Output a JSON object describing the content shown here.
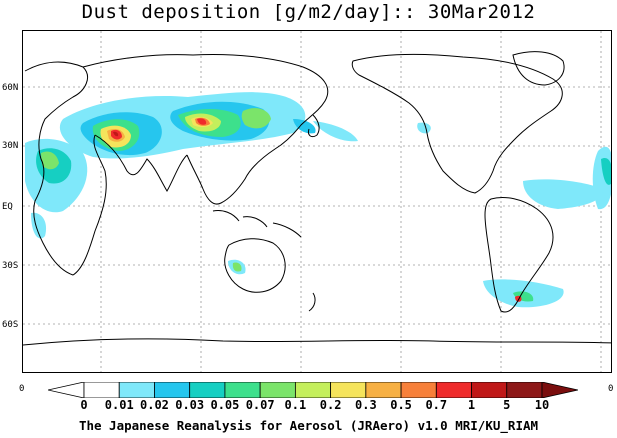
{
  "title": "Dust deposition [g/m2/day]:: 30Mar2012",
  "latitude_labels": [
    "60N",
    "30N",
    "EQ",
    "30S",
    "60S"
  ],
  "colorbar": {
    "end_labels": [
      "0",
      "0"
    ],
    "levels": [
      "0",
      "0.01",
      "0.02",
      "0.03",
      "0.05",
      "0.07",
      "0.1",
      "0.2",
      "0.3",
      "0.5",
      "0.7",
      "1",
      "5",
      "10"
    ],
    "colors": [
      "#ffffff",
      "#ffffff",
      "#7fe8fa",
      "#26c6ee",
      "#16cfc2",
      "#3de08c",
      "#7be46a",
      "#c4ef5c",
      "#f5e45c",
      "#f7b043",
      "#f7803a",
      "#ef2b2b",
      "#c01818",
      "#8e1818",
      "#7a0e0e"
    ]
  },
  "footer": "The Japanese Reanalysis for Aerosol (JRAero) v1.0 MRI/KU_RIAM"
}
